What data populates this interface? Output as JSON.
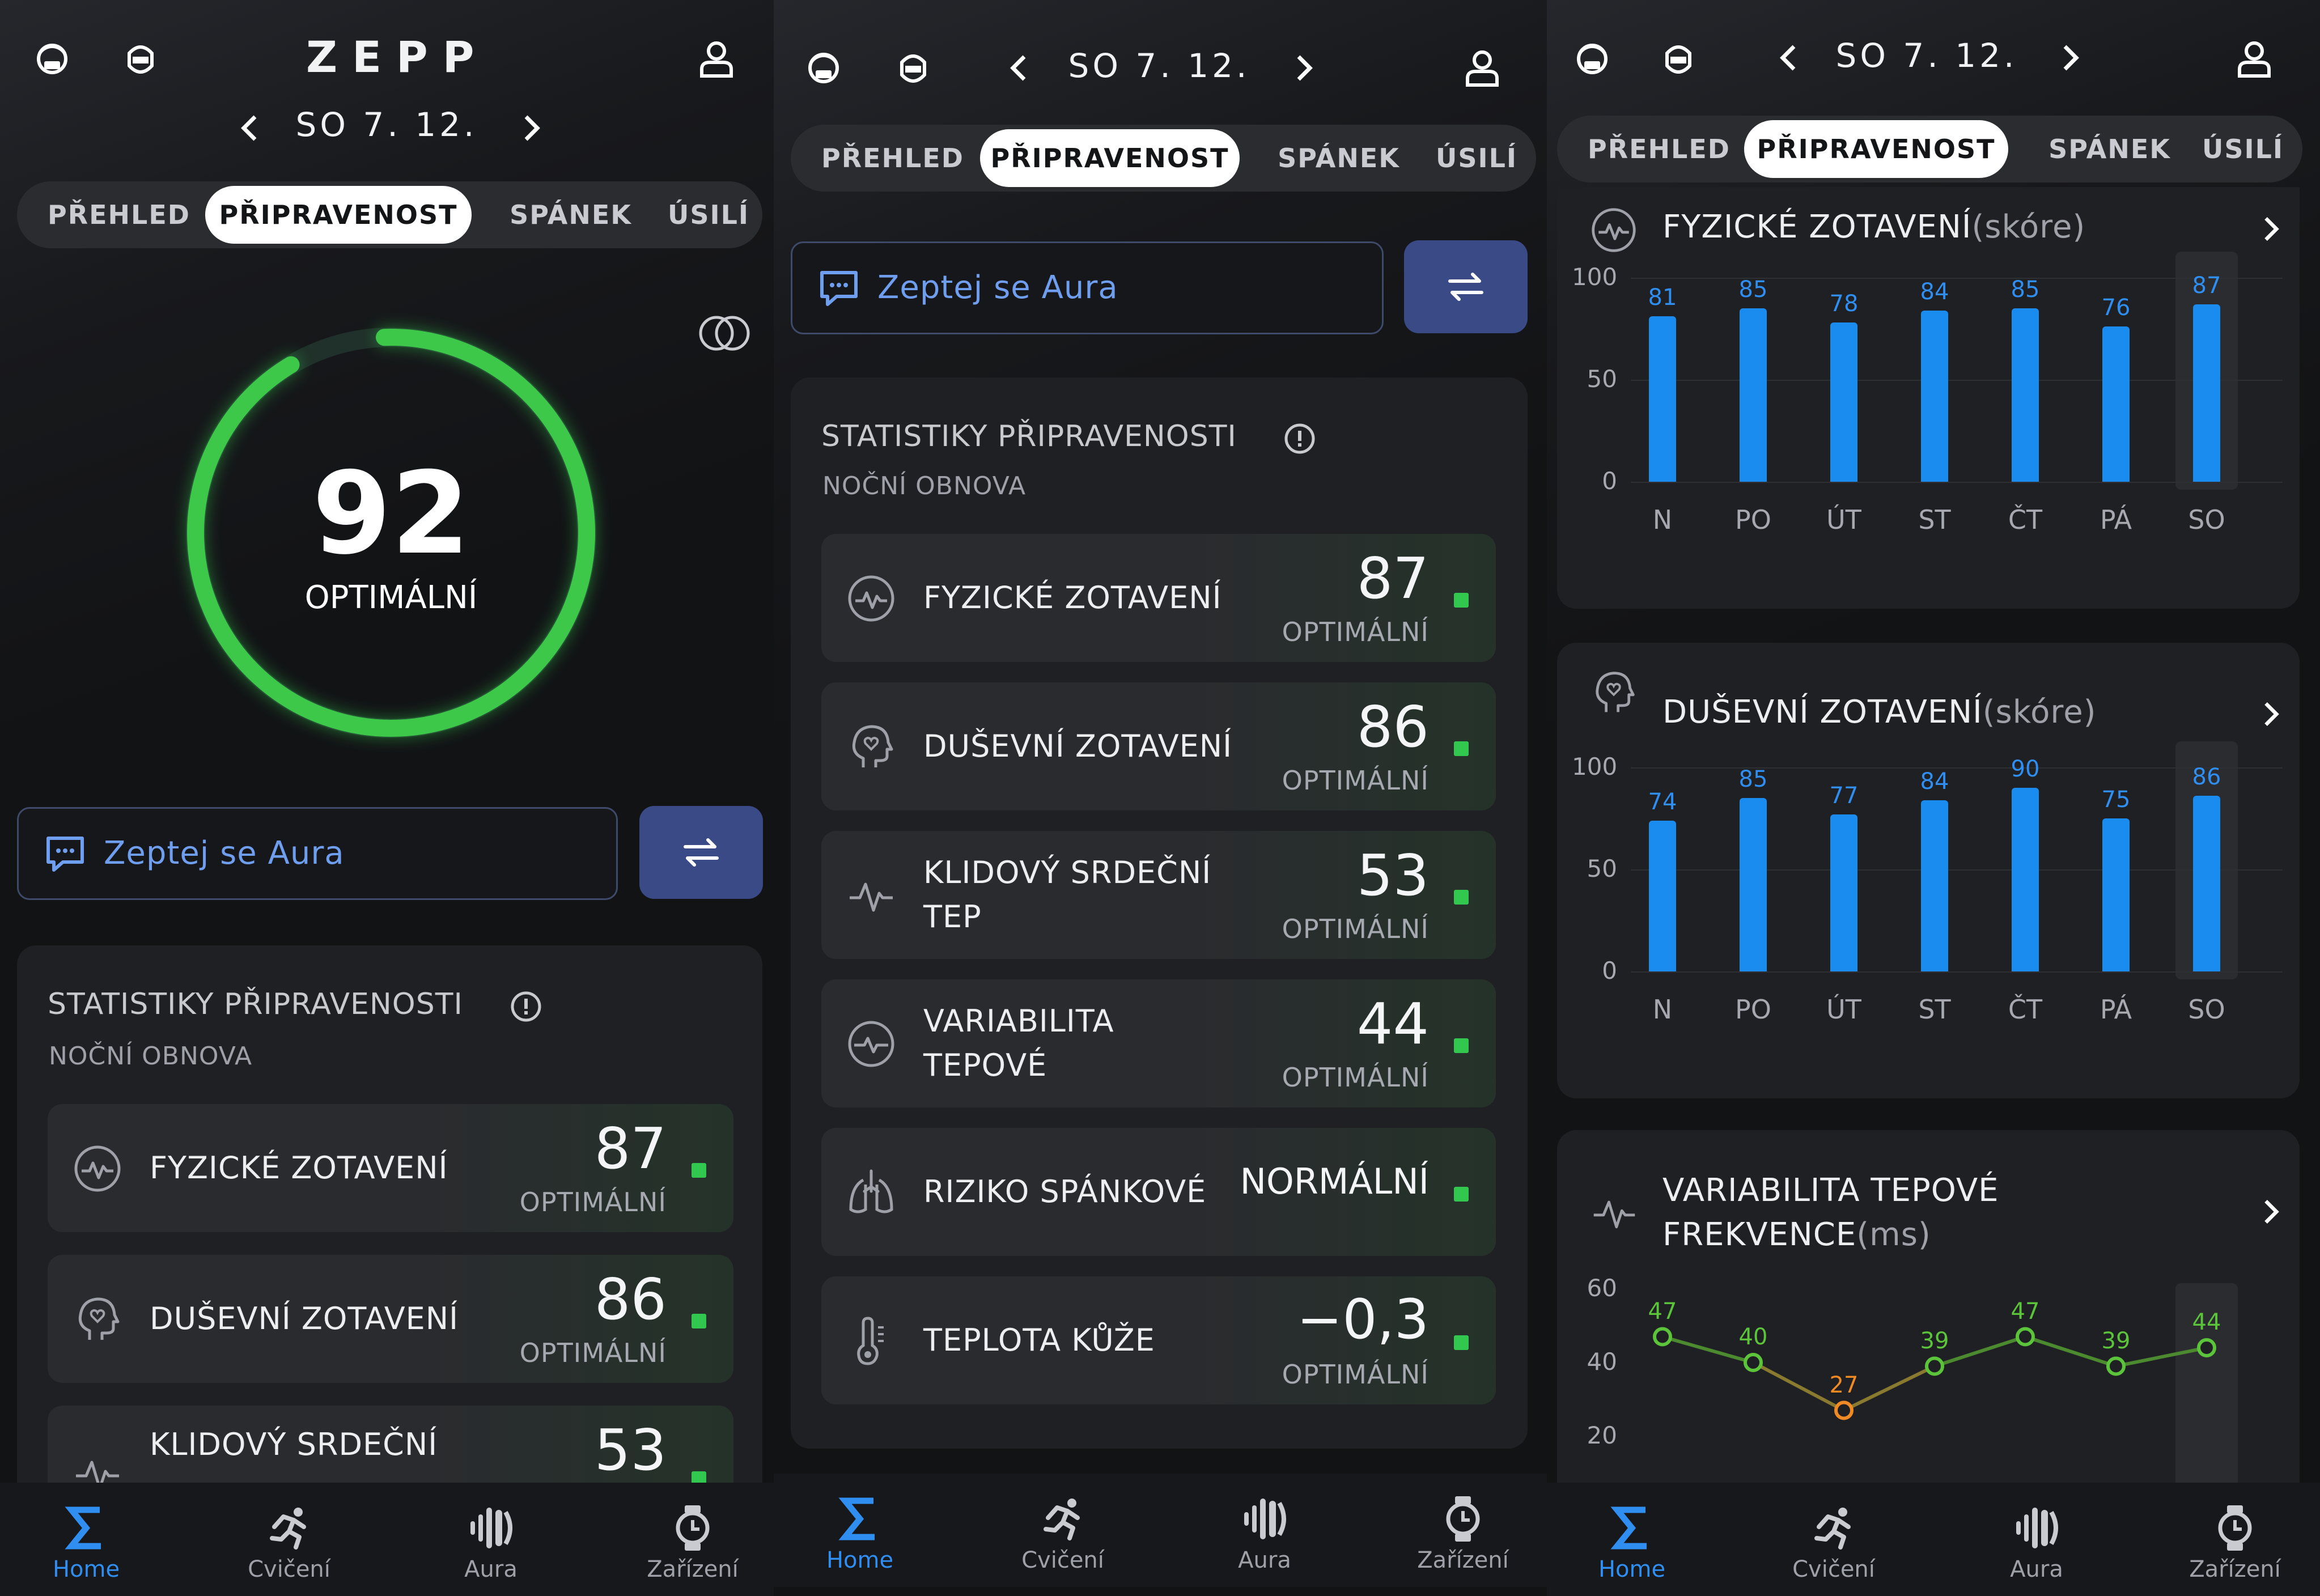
{
  "colors": {
    "accent_green": "#32c850",
    "accent_blue": "#1a8cf0",
    "hrv_green": "#5cc43a",
    "hrv_orange": "#f08a24",
    "tab_active_bg": "#ffffff",
    "aura_text": "#6f9eee",
    "swap_bg": "#3a4a86"
  },
  "header": {
    "logo": "ZEPP",
    "date": "SO 7. 12.",
    "icons": [
      "watch-sync-icon",
      "watch-icon",
      "chevron-left-icon",
      "chevron-right-icon",
      "profile-icon"
    ]
  },
  "tabs": [
    "PŘEHLED",
    "PŘIPRAVENOST",
    "SPÁNEK",
    "ÚSILÍ"
  ],
  "active_tab": "PŘIPRAVENOST",
  "score": {
    "value": "92",
    "label": "OPTIMÁLNÍ",
    "progress": 0.92
  },
  "aura": {
    "label": "Zeptej se Aura"
  },
  "stats": {
    "title": "STATISTIKY PŘIPRAVENOSTI",
    "subtitle": "NOČNÍ OBNOVA",
    "rows": [
      {
        "label": "FYZICKÉ ZOTAVENÍ",
        "value": "87",
        "status": "OPTIMÁLNÍ",
        "icon": "activity-icon"
      },
      {
        "label": "DUŠEVNÍ ZOTAVENÍ",
        "value": "86",
        "status": "OPTIMÁLNÍ",
        "icon": "head-heart-icon"
      },
      {
        "label": "KLIDOVÝ SRDEČNÍ TEP",
        "value": "53",
        "status": "OPTIMÁLNÍ",
        "icon": "pulse-icon"
      },
      {
        "label": "VARIABILITA TEPOVÉ",
        "value": "44",
        "status": "OPTIMÁLNÍ",
        "icon": "heart-rate-circle-icon"
      },
      {
        "label": "RIZIKO SPÁNKOVÉ",
        "value": "NORMÁLNÍ",
        "status": "",
        "icon": "lungs-icon"
      },
      {
        "label": "TEPLOTA KŮŽE",
        "value": "−0,3",
        "status": "OPTIMÁLNÍ",
        "icon": "thermometer-icon"
      }
    ],
    "partial_label": "KLIDOVÝ SRDEČNÍ"
  },
  "chart_data": [
    {
      "type": "bar",
      "title": "FYZICKÉ ZOTAVENÍ",
      "unit": "(skóre)",
      "categories": [
        "N",
        "PO",
        "ÚT",
        "ST",
        "ČT",
        "PÁ",
        "SO"
      ],
      "values": [
        81,
        85,
        78,
        84,
        85,
        76,
        87
      ],
      "ylim": [
        0,
        100
      ],
      "yticks": [
        "100",
        "50",
        "0"
      ],
      "highlight_index": 6
    },
    {
      "type": "bar",
      "title": "DUŠEVNÍ ZOTAVENÍ",
      "unit": "(skóre)",
      "categories": [
        "N",
        "PO",
        "ÚT",
        "ST",
        "ČT",
        "PÁ",
        "SO"
      ],
      "values": [
        74,
        85,
        77,
        84,
        90,
        75,
        86
      ],
      "ylim": [
        0,
        100
      ],
      "yticks": [
        "100",
        "50",
        "0"
      ],
      "highlight_index": 6
    },
    {
      "type": "line",
      "title": "VARIABILITA TEPOVÉ FREKVENCE",
      "title_line1": "VARIABILITA TEPOVÉ",
      "title_line2": "FREKVENCE",
      "unit": "(ms)",
      "values": [
        47,
        40,
        27,
        39,
        47,
        39,
        44
      ],
      "ylim": [
        20,
        60
      ],
      "yticks": [
        "60",
        "40",
        "20"
      ],
      "low_index": 2,
      "highlight_index": 6
    }
  ],
  "nav": [
    {
      "label": "Home",
      "icon": "sigma-home-icon"
    },
    {
      "label": "Cvičení",
      "icon": "running-icon"
    },
    {
      "label": "Aura",
      "icon": "aura-waves-icon"
    },
    {
      "label": "Zařízení",
      "icon": "watch-device-icon"
    }
  ]
}
